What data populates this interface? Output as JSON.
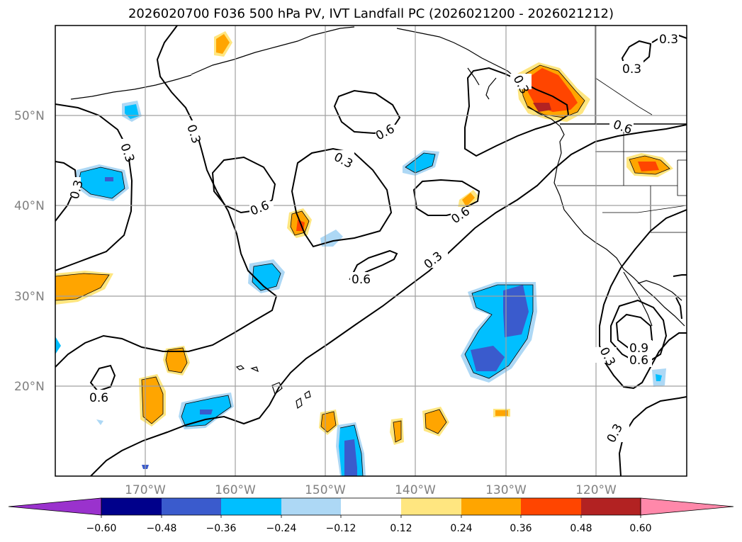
{
  "title": "2026020700 F036 500 hPa PV, IVT Landfall PC (2026021200 - 2026021212)",
  "map": {
    "lat_labels": [
      "50°N",
      "40°N",
      "30°N",
      "20°N"
    ],
    "lon_labels": [
      "170°W",
      "160°W",
      "150°W",
      "140°W",
      "130°W",
      "120°W"
    ],
    "contour_labels": [
      "0.3",
      "0.3",
      "0.3",
      "0.3",
      "0.3",
      "0.3",
      "0.3",
      "0.3",
      "0.3",
      "0.3",
      "0.6",
      "0.6",
      "0.6",
      "0.6",
      "0.6",
      "0.6",
      "0.6",
      "0.9"
    ]
  },
  "colorbar": {
    "ticks": [
      "−0.60",
      "−0.48",
      "−0.36",
      "−0.24",
      "−0.12",
      "0.12",
      "0.24",
      "0.36",
      "0.48",
      "0.60"
    ],
    "colors": [
      "#9a32cd",
      "#00008b",
      "#3a5bcd",
      "#00bfff",
      "#add8f5",
      "#ffffff",
      "#ffe680",
      "#ffa500",
      "#ff4500",
      "#b22222",
      "#ff88aa"
    ]
  }
}
